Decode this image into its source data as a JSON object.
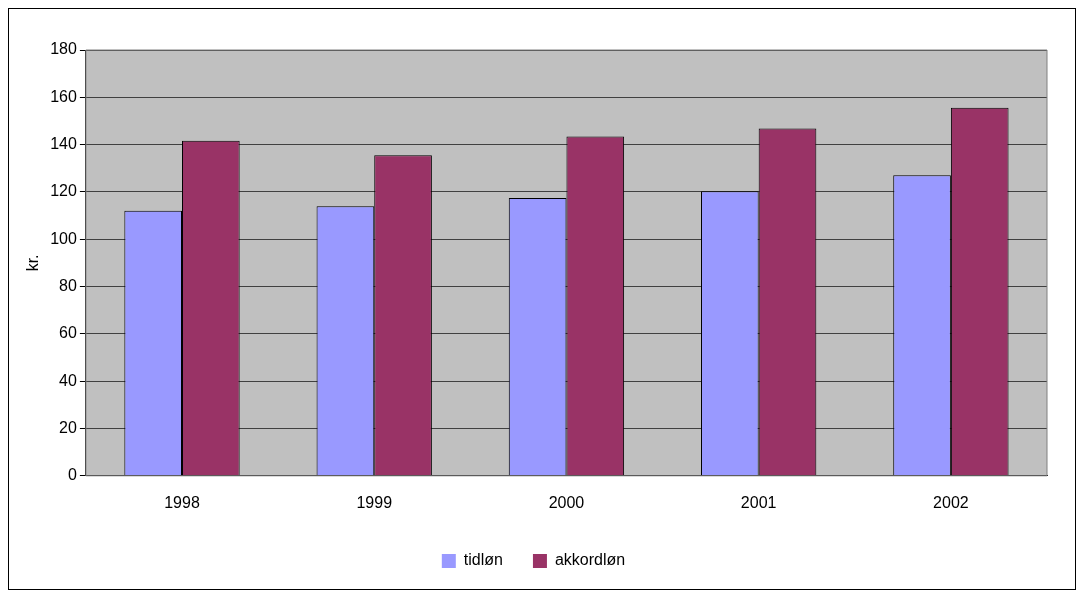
{
  "chart_data": {
    "type": "bar",
    "ylabel": "kr.",
    "categories": [
      "1998",
      "1999",
      "2000",
      "2001",
      "2002"
    ],
    "series": [
      {
        "name": "tidløn",
        "color": "#9999ff",
        "values": [
          112,
          114,
          117.4,
          120.3,
          127
        ]
      },
      {
        "name": "akkordløn",
        "color": "#993366",
        "values": [
          141.6,
          135.5,
          143.4,
          146.8,
          155.6
        ]
      }
    ],
    "ylim": [
      0,
      180
    ],
    "yticks": [
      0,
      20,
      40,
      60,
      80,
      100,
      120,
      140,
      160,
      180
    ],
    "grid": "y",
    "legend": "bottom"
  }
}
